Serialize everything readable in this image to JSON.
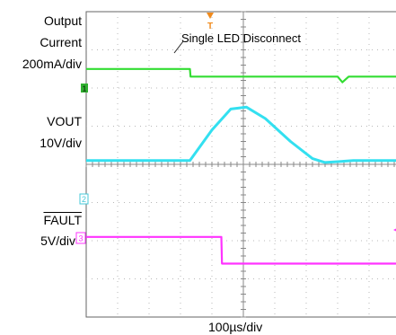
{
  "chart_data": {
    "type": "line",
    "title": "",
    "xlabel": "100µs/div",
    "grid": true,
    "x_divisions": 10,
    "y_divisions": 8,
    "annotations": [
      {
        "text": "Single LED Disconnect",
        "marker": "T"
      }
    ],
    "channels": [
      {
        "label_lines": [
          "Output",
          "Current",
          "200mA/div"
        ],
        "color": "#33dd33",
        "marker": "1"
      },
      {
        "label_lines": [
          "VOUT",
          "10V/div"
        ],
        "color": "#33e0f0",
        "marker": ""
      },
      {
        "label_lines": [
          "FAULT",
          "5V/div"
        ],
        "color": "#ff33ff",
        "marker": "3"
      }
    ],
    "extra_markers": [
      {
        "text": "2",
        "color": "#44c8d8"
      }
    ],
    "series": [
      {
        "name": "Output Current",
        "x": [
          0,
          3.3,
          3.32,
          8.0,
          8.15,
          8.35,
          10
        ],
        "y": [
          1.5,
          1.5,
          1.7,
          1.7,
          1.85,
          1.7,
          1.7
        ]
      },
      {
        "name": "VOUT",
        "x": [
          0,
          3.3,
          4.0,
          4.6,
          5.1,
          5.7,
          6.5,
          7.2,
          7.6,
          8.5,
          10
        ],
        "y": [
          3.9,
          3.9,
          3.1,
          2.55,
          2.5,
          2.8,
          3.4,
          3.85,
          3.95,
          3.9,
          3.9
        ]
      },
      {
        "name": "FAULT",
        "x": [
          0,
          4.3,
          4.32,
          10
        ],
        "y": [
          5.9,
          5.9,
          6.6,
          6.6
        ]
      }
    ]
  }
}
